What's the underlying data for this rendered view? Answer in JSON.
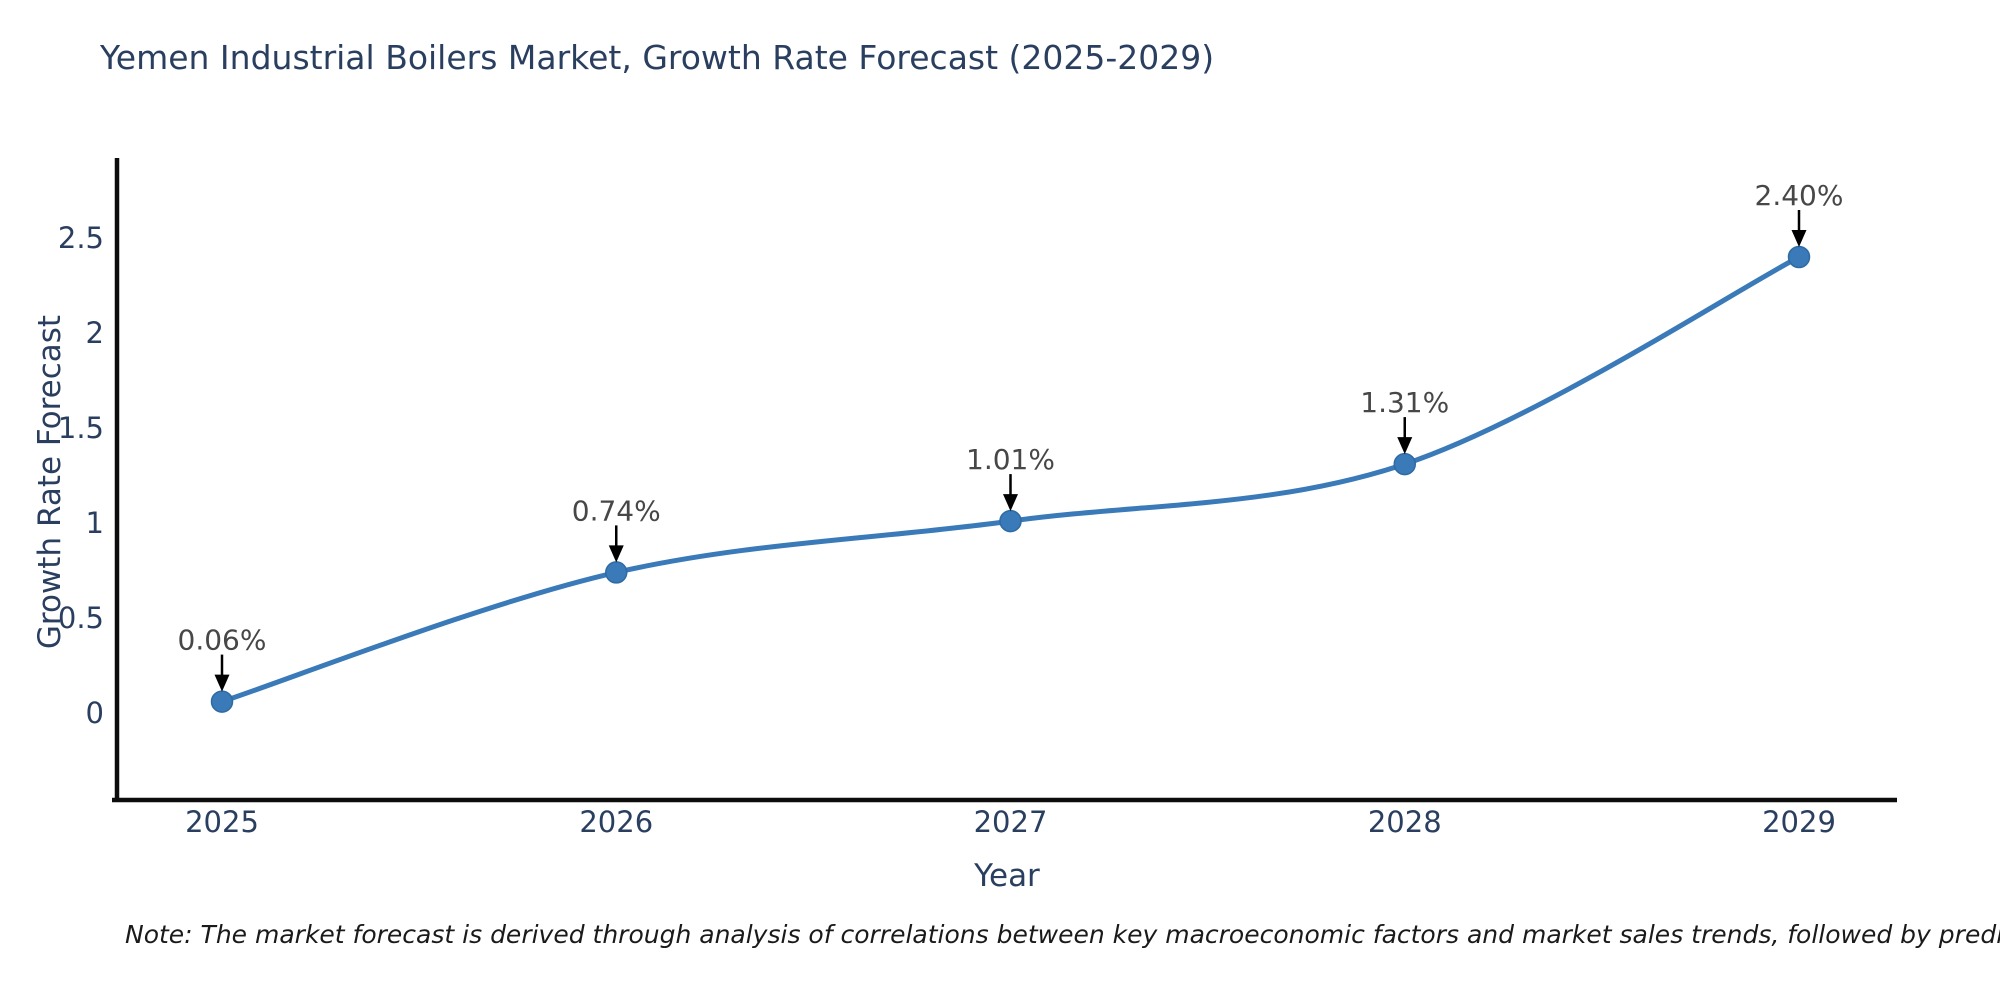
{
  "page": {
    "background": "#ffffff"
  },
  "chart_data": {
    "type": "line",
    "title": "Yemen Industrial Boilers Market, Growth Rate Forecast (2025-2029)",
    "xlabel": "Year",
    "ylabel": "Growth Rate Forecast",
    "categories": [
      "2025",
      "2026",
      "2027",
      "2028",
      "2029"
    ],
    "series": [
      {
        "name": "Growth Rate Forecast",
        "values": [
          0.06,
          0.74,
          1.01,
          1.31,
          2.4
        ],
        "point_labels": [
          "0.06%",
          "0.74%",
          "1.01%",
          "1.31%",
          "2.40%"
        ]
      }
    ],
    "line_shape": "spline",
    "markers": true,
    "annotations_arrows": true,
    "ytick_values": [
      0,
      0.5,
      1,
      1.5,
      2,
      2.5
    ],
    "ytick_labels": [
      "0",
      "0.5",
      "1",
      "1.5",
      "2",
      "2.5"
    ],
    "ylim": [
      -0.47,
      2.92
    ],
    "grid": false,
    "legend_position": "none",
    "colors": {
      "line": "#3a7ab8",
      "marker_fill": "#3a7ab8",
      "marker_stroke": "#2f6aa3",
      "annotation_arrow": "#000000",
      "annotation_text": "#474747",
      "axis_line": "#0d0d0d",
      "tick_text": "#2a3f5f",
      "title_text": "#2a3f5f"
    },
    "note": "Note: The market forecast is derived through analysis of correlations between key macroeconomic factors and market sales trends, followed by predictive modeling to project future sales"
  }
}
